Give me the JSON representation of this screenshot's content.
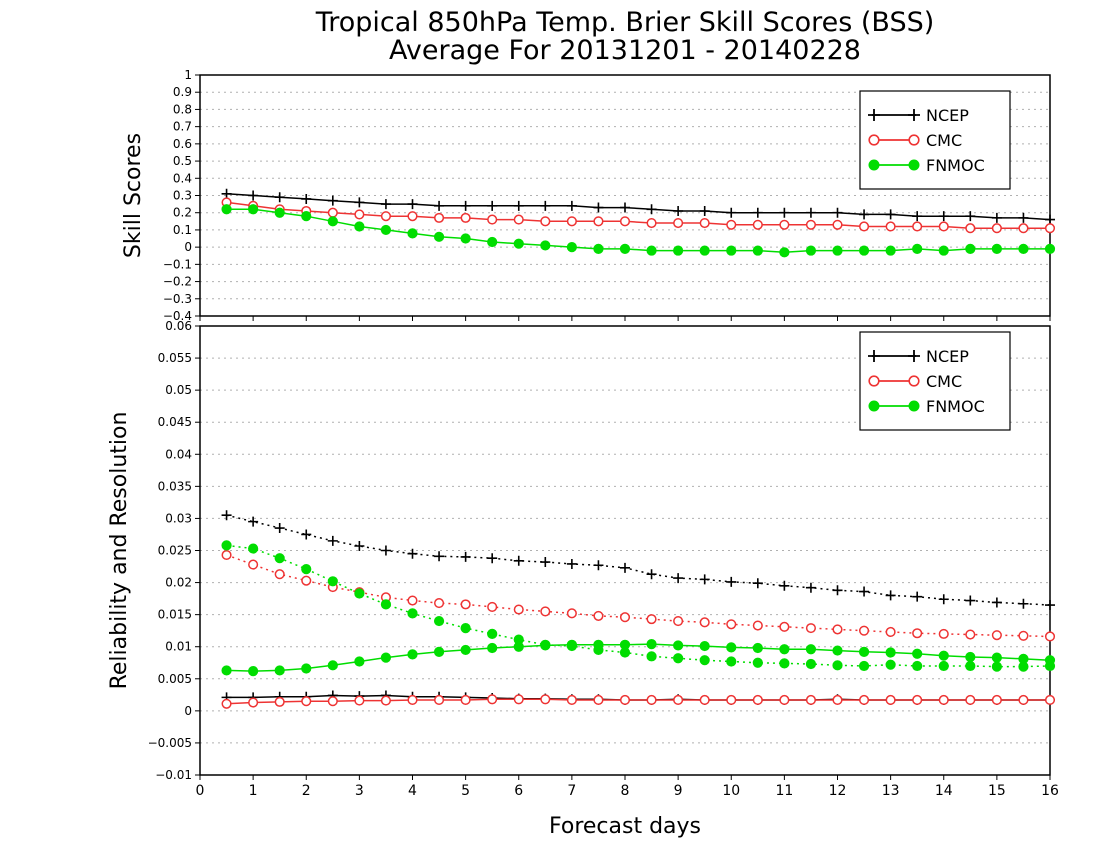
{
  "title_line1": "Tropical 850hPa Temp. Brier Skill Scores (BSS)",
  "title_line2": "Average For 20131201 - 20140228",
  "x_axis_label": "Forecast days",
  "colors": {
    "NCEP": "#000000",
    "CMC": "#ee3333",
    "FNMOC": "#00dd00",
    "grid": "#b0b0b0"
  },
  "chart_data": [
    {
      "type": "line",
      "panel": "top",
      "ylabel": "Skill Scores",
      "xlim": [
        0,
        16
      ],
      "ylim": [
        -0.4,
        1
      ],
      "x_ticks": [
        0,
        1,
        2,
        3,
        4,
        5,
        6,
        7,
        8,
        9,
        10,
        11,
        12,
        13,
        14,
        15,
        16
      ],
      "y_ticks": [
        "−0.4",
        "−0.3",
        "−0.2",
        "−0.1",
        "0",
        "0.1",
        "0.2",
        "0.3",
        "0.4",
        "0.5",
        "0.6",
        "0.7",
        "0.8",
        "0.9",
        "1"
      ],
      "y_tick_values": [
        -0.4,
        -0.3,
        -0.2,
        -0.1,
        0,
        0.1,
        0.2,
        0.3,
        0.4,
        0.5,
        0.6,
        0.7,
        0.8,
        0.9,
        1
      ],
      "grid": true,
      "legend_position": "top-right",
      "x": [
        0.5,
        1,
        1.5,
        2,
        2.5,
        3,
        3.5,
        4,
        4.5,
        5,
        5.5,
        6,
        6.5,
        7,
        7.5,
        8,
        8.5,
        9,
        9.5,
        10,
        10.5,
        11,
        11.5,
        12,
        12.5,
        13,
        13.5,
        14,
        14.5,
        15,
        15.5,
        16
      ],
      "series": [
        {
          "name": "NCEP",
          "style": "solid",
          "marker": "plus",
          "values": [
            0.31,
            0.3,
            0.29,
            0.28,
            0.27,
            0.26,
            0.25,
            0.25,
            0.24,
            0.24,
            0.24,
            0.24,
            0.24,
            0.24,
            0.23,
            0.23,
            0.22,
            0.21,
            0.21,
            0.2,
            0.2,
            0.2,
            0.2,
            0.2,
            0.19,
            0.19,
            0.18,
            0.18,
            0.18,
            0.17,
            0.17,
            0.16
          ]
        },
        {
          "name": "CMC",
          "style": "solid",
          "marker": "open-circle",
          "values": [
            0.26,
            0.24,
            0.22,
            0.21,
            0.2,
            0.19,
            0.18,
            0.18,
            0.17,
            0.17,
            0.16,
            0.16,
            0.15,
            0.15,
            0.15,
            0.15,
            0.14,
            0.14,
            0.14,
            0.13,
            0.13,
            0.13,
            0.13,
            0.13,
            0.12,
            0.12,
            0.12,
            0.12,
            0.11,
            0.11,
            0.11,
            0.11
          ]
        },
        {
          "name": "FNMOC",
          "style": "solid",
          "marker": "filled-circle",
          "values": [
            0.22,
            0.22,
            0.2,
            0.18,
            0.15,
            0.12,
            0.1,
            0.08,
            0.06,
            0.05,
            0.03,
            0.02,
            0.01,
            0.0,
            -0.01,
            -0.01,
            -0.02,
            -0.02,
            -0.02,
            -0.02,
            -0.02,
            -0.03,
            -0.02,
            -0.02,
            -0.02,
            -0.02,
            -0.01,
            -0.02,
            -0.01,
            -0.01,
            -0.01,
            -0.01
          ]
        }
      ]
    },
    {
      "type": "line",
      "panel": "bottom",
      "ylabel": "Reliability and Resolution",
      "xlim": [
        0,
        16
      ],
      "ylim": [
        -0.01,
        0.06
      ],
      "x_ticks": [
        0,
        1,
        2,
        3,
        4,
        5,
        6,
        7,
        8,
        9,
        10,
        11,
        12,
        13,
        14,
        15,
        16
      ],
      "y_ticks": [
        "−0.01",
        "−0.005",
        "0",
        "0.005",
        "0.01",
        "0.015",
        "0.02",
        "0.025",
        "0.03",
        "0.035",
        "0.04",
        "0.045",
        "0.05",
        "0.055",
        "0.06"
      ],
      "y_tick_values": [
        -0.01,
        -0.005,
        0,
        0.005,
        0.01,
        0.015,
        0.02,
        0.025,
        0.03,
        0.035,
        0.04,
        0.045,
        0.05,
        0.055,
        0.06
      ],
      "grid": true,
      "legend_position": "top-right",
      "x": [
        0.5,
        1,
        1.5,
        2,
        2.5,
        3,
        3.5,
        4,
        4.5,
        5,
        5.5,
        6,
        6.5,
        7,
        7.5,
        8,
        8.5,
        9,
        9.5,
        10,
        10.5,
        11,
        11.5,
        12,
        12.5,
        13,
        13.5,
        14,
        14.5,
        15,
        15.5,
        16
      ],
      "series": [
        {
          "name": "NCEP",
          "group": "reliability",
          "style": "solid",
          "marker": "plus",
          "values": [
            0.0021,
            0.0021,
            0.0022,
            0.0022,
            0.0024,
            0.0023,
            0.0024,
            0.0022,
            0.0022,
            0.0021,
            0.002,
            0.0019,
            0.0019,
            0.0018,
            0.0018,
            0.0017,
            0.0017,
            0.0018,
            0.0017,
            0.0017,
            0.0017,
            0.0017,
            0.0017,
            0.0018,
            0.0017,
            0.0017,
            0.0017,
            0.0017,
            0.0017,
            0.0017,
            0.0017,
            0.0017
          ]
        },
        {
          "name": "NCEP",
          "group": "resolution",
          "style": "dotted",
          "marker": "plus",
          "values": [
            0.0305,
            0.0295,
            0.0285,
            0.0275,
            0.0265,
            0.0257,
            0.025,
            0.0245,
            0.0241,
            0.024,
            0.0238,
            0.0234,
            0.0232,
            0.0229,
            0.0227,
            0.0223,
            0.0213,
            0.0207,
            0.0205,
            0.0201,
            0.0199,
            0.0195,
            0.0192,
            0.0188,
            0.0186,
            0.018,
            0.0178,
            0.0174,
            0.0172,
            0.0169,
            0.0167,
            0.0165
          ]
        },
        {
          "name": "CMC",
          "group": "reliability",
          "style": "solid",
          "marker": "open-circle",
          "values": [
            0.0011,
            0.0013,
            0.0014,
            0.0015,
            0.0015,
            0.0016,
            0.0016,
            0.0017,
            0.0017,
            0.0017,
            0.0018,
            0.0018,
            0.0018,
            0.0017,
            0.0017,
            0.0017,
            0.0017,
            0.0017,
            0.0017,
            0.0017,
            0.0017,
            0.0017,
            0.0017,
            0.0017,
            0.0017,
            0.0017,
            0.0017,
            0.0017,
            0.0017,
            0.0017,
            0.0017,
            0.0017
          ]
        },
        {
          "name": "CMC",
          "group": "resolution",
          "style": "dotted",
          "marker": "open-circle",
          "values": [
            0.0243,
            0.0228,
            0.0213,
            0.0203,
            0.0193,
            0.0185,
            0.0177,
            0.0172,
            0.0168,
            0.0166,
            0.0162,
            0.0158,
            0.0155,
            0.0152,
            0.0148,
            0.0146,
            0.0143,
            0.014,
            0.0138,
            0.0135,
            0.0133,
            0.0131,
            0.0129,
            0.0127,
            0.0125,
            0.0123,
            0.0121,
            0.012,
            0.0119,
            0.0118,
            0.0117,
            0.0116
          ]
        },
        {
          "name": "FNMOC",
          "group": "reliability",
          "style": "solid",
          "marker": "filled-circle",
          "values": [
            0.0063,
            0.0062,
            0.0063,
            0.0066,
            0.0071,
            0.0077,
            0.0083,
            0.0088,
            0.0092,
            0.0095,
            0.0098,
            0.01,
            0.0102,
            0.0103,
            0.0103,
            0.0103,
            0.0104,
            0.0102,
            0.0101,
            0.0099,
            0.0098,
            0.0096,
            0.0096,
            0.0094,
            0.0092,
            0.0091,
            0.0089,
            0.0086,
            0.0084,
            0.0083,
            0.0081,
            0.0079
          ]
        },
        {
          "name": "FNMOC",
          "group": "resolution",
          "style": "dotted",
          "marker": "filled-circle",
          "values": [
            0.0258,
            0.0253,
            0.0238,
            0.0221,
            0.0202,
            0.0183,
            0.0166,
            0.0152,
            0.014,
            0.0129,
            0.012,
            0.0111,
            0.0103,
            0.0101,
            0.0095,
            0.0091,
            0.0085,
            0.0082,
            0.0079,
            0.0077,
            0.0075,
            0.0074,
            0.0073,
            0.0071,
            0.007,
            0.0072,
            0.007,
            0.007,
            0.007,
            0.0069,
            0.0069,
            0.007
          ]
        }
      ]
    }
  ]
}
